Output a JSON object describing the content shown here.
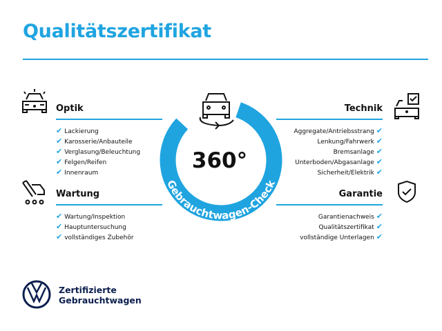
{
  "title": "Qualitätszertifikat",
  "badge": {
    "value": "360°",
    "ring_text": "Gebrauchtwagen-Check",
    "color": "#1fa4e0"
  },
  "sections": {
    "optik": {
      "title": "Optik",
      "icon": "car-lights-icon",
      "items": [
        "Lackierung",
        "Karosserie/Anbauteile",
        "Verglasung/Beleuchtung",
        "Felgen/Reifen",
        "Innenraum"
      ]
    },
    "wartung": {
      "title": "Wartung",
      "icon": "service-tools-icon",
      "items": [
        "Wartung/Inspektion",
        "Hauptuntersuchung",
        "vollständiges Zubehör"
      ]
    },
    "technik": {
      "title": "Technik",
      "icon": "car-checklist-icon",
      "items": [
        "Aggregate/Antriebsstrang",
        "Lenkung/Fahrwerk",
        "Bremsanlage",
        "Unterboden/Abgasanlage",
        "Sicherheit/Elektrik"
      ]
    },
    "garantie": {
      "title": "Garantie",
      "icon": "shield-check-icon",
      "items": [
        "Garantienachweis",
        "Qualitätszertifikat",
        "vollständige Unterlagen"
      ]
    }
  },
  "check": "✔",
  "brand": {
    "line1": "Zertifizierte",
    "line2": "Gebrauchtwagen",
    "logo": "VW"
  }
}
